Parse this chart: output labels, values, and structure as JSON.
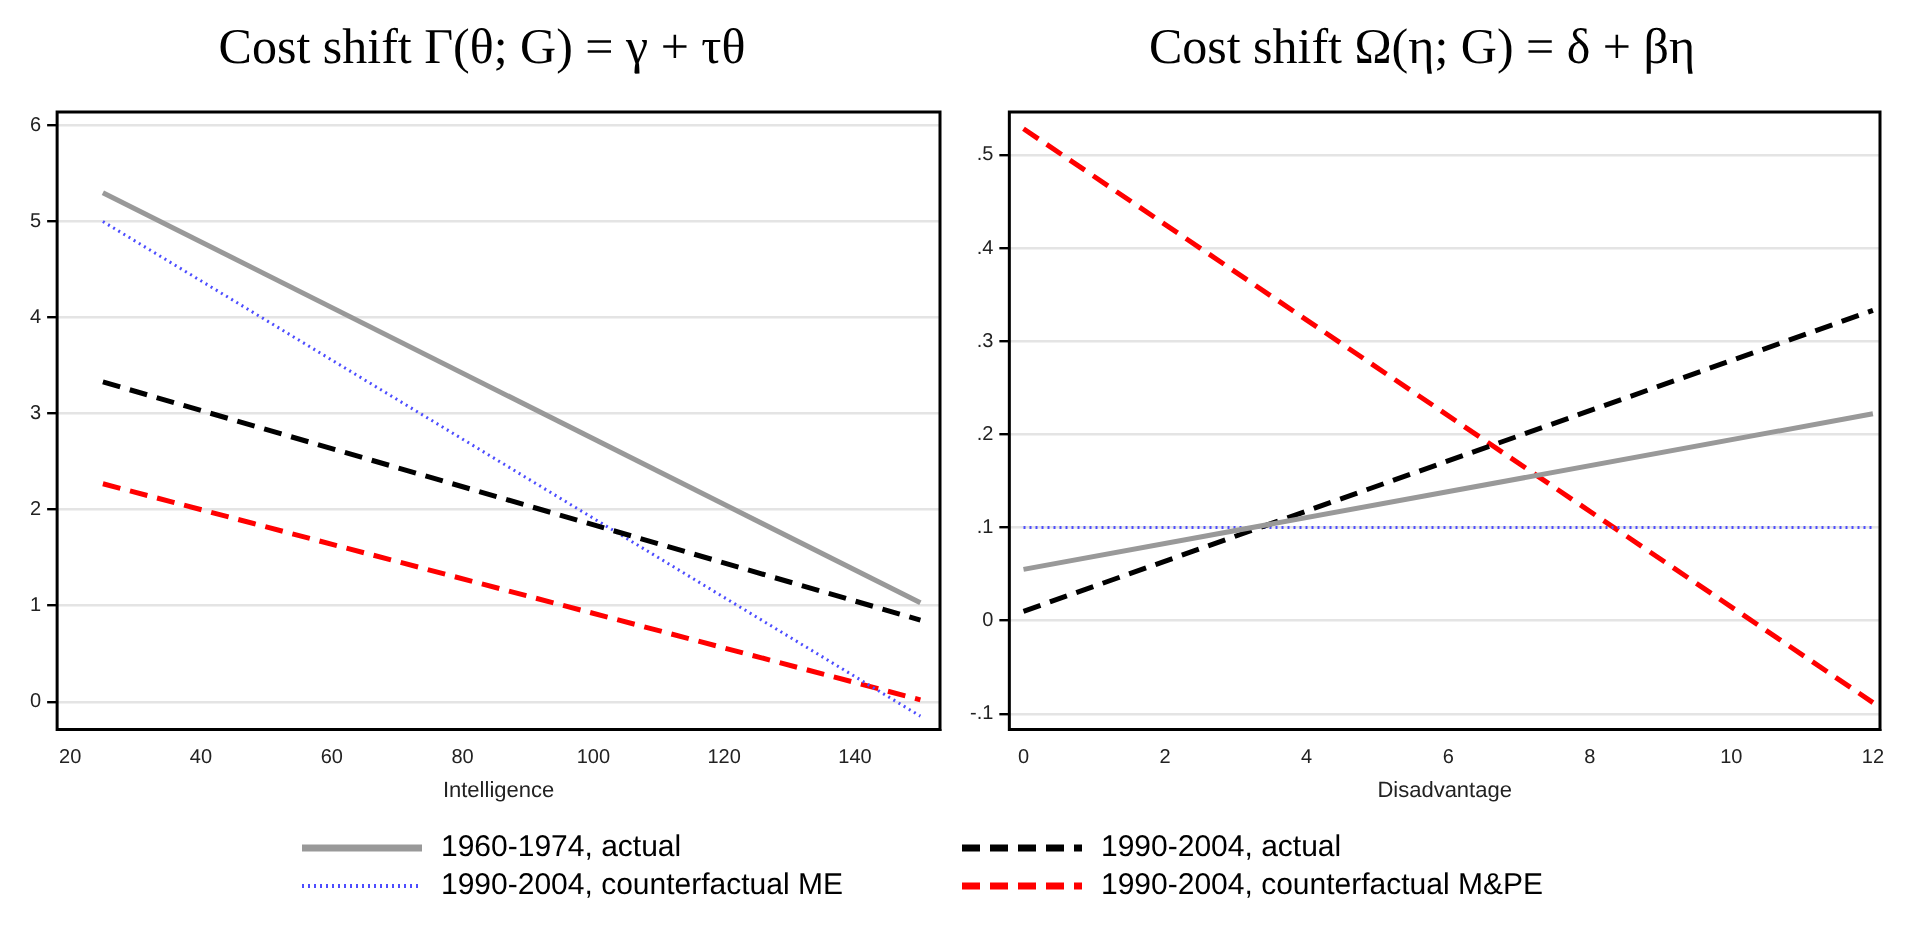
{
  "chart_data": [
    {
      "type": "line",
      "title": "Cost shift Γ(θ; G) = γ + τθ",
      "xlabel": "Intelligence",
      "x": [
        25,
        150
      ],
      "series": [
        {
          "name": "1960-1974, actual",
          "color": "#999999",
          "line_style": "solid",
          "values": [
            5.3,
            1.03
          ]
        },
        {
          "name": "1990-2004, actual",
          "color": "#000000",
          "line_style": "dashed",
          "values": [
            3.33,
            0.85
          ]
        },
        {
          "name": "1990-2004, counterfactual ME",
          "color": "#4d4dff",
          "line_style": "dotted",
          "values": [
            5.0,
            -0.15
          ]
        },
        {
          "name": "1990-2004, counterfactual M&PE",
          "color": "#ff0000",
          "line_style": "dashed",
          "values": [
            2.27,
            0.02
          ]
        }
      ],
      "xlim": [
        18,
        153
      ],
      "xticks": [
        20,
        40,
        60,
        80,
        100,
        120,
        140
      ],
      "ylim": [
        -0.29,
        6.14
      ],
      "yticks": [
        0,
        1,
        2,
        3,
        4,
        5,
        6
      ],
      "grid": "y",
      "legend": "bottom",
      "marker": "none"
    },
    {
      "type": "line",
      "title": "Cost shift Ω(η; G) = δ + βη",
      "xlabel": "Disadvantage",
      "x": [
        0,
        12
      ],
      "series": [
        {
          "color": "#999999",
          "line_style": "solid",
          "values": [
            0.055,
            0.222
          ]
        },
        {
          "color": "#000000",
          "line_style": "dashed",
          "values": [
            0.01,
            0.333
          ]
        },
        {
          "color": "#4d4dff",
          "line_style": "dotted",
          "values": [
            0.1,
            0.1
          ]
        },
        {
          "color": "#ff0000",
          "line_style": "dashed",
          "values": [
            0.528,
            -0.088
          ]
        }
      ],
      "xlim": [
        -0.2,
        12.1
      ],
      "xticks": [
        0,
        2,
        4,
        6,
        8,
        10,
        12
      ],
      "ylim": [
        -0.117,
        0.546
      ],
      "yticks": [
        {
          "value": -0.1,
          "label": "-.1"
        },
        0,
        {
          "value": 0.1,
          "label": ".1"
        },
        {
          "value": 0.2,
          "label": ".2"
        },
        {
          "value": 0.3,
          "label": ".3"
        },
        {
          "value": 0.4,
          "label": ".4"
        },
        {
          "value": 0.5,
          "label": ".5"
        }
      ],
      "grid": "y",
      "marker": "none"
    }
  ]
}
